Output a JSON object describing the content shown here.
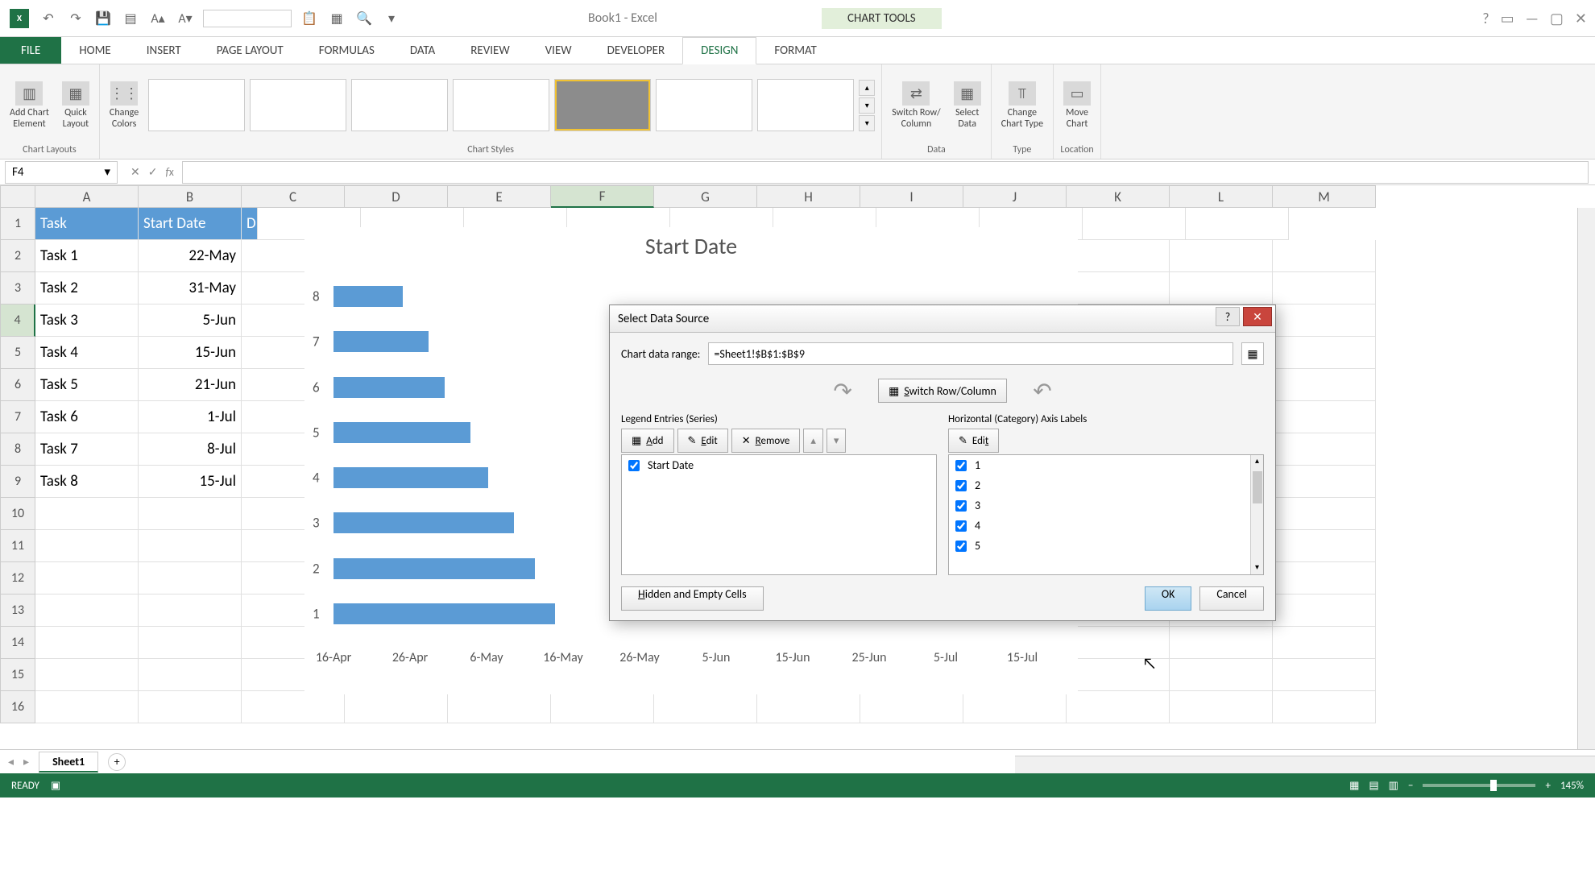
{
  "app": {
    "title": "Book1 - Excel",
    "chart_tools": "CHART TOOLS"
  },
  "tabs": {
    "file": "FILE",
    "home": "HOME",
    "insert": "INSERT",
    "page_layout": "PAGE LAYOUT",
    "formulas": "FORMULAS",
    "data": "DATA",
    "review": "REVIEW",
    "view": "VIEW",
    "developer": "DEVELOPER",
    "design": "DESIGN",
    "format": "FORMAT"
  },
  "ribbon": {
    "add_chart_element": "Add Chart\nElement",
    "quick_layout": "Quick\nLayout",
    "change_colors": "Change\nColors",
    "group_chart_layouts": "Chart Layouts",
    "group_chart_styles": "Chart Styles",
    "switch_row_col": "Switch Row/\nColumn",
    "select_data": "Select\nData",
    "group_data": "Data",
    "change_chart_type": "Change\nChart Type",
    "group_type": "Type",
    "move_chart": "Move\nChart",
    "group_location": "Location"
  },
  "name_box": "F4",
  "columns": [
    "A",
    "B",
    "C",
    "D",
    "E",
    "F",
    "G",
    "H",
    "I",
    "J",
    "K",
    "L",
    "M"
  ],
  "active_col_idx": 5,
  "active_row_idx": 3,
  "table": {
    "headers": [
      "Task",
      "Start Date",
      "D"
    ],
    "rows": [
      [
        "Task 1",
        "22-May"
      ],
      [
        "Task 2",
        "31-May"
      ],
      [
        "Task 3",
        "5-Jun"
      ],
      [
        "Task 4",
        "15-Jun"
      ],
      [
        "Task 5",
        "21-Jun"
      ],
      [
        "Task 6",
        "1-Jul"
      ],
      [
        "Task 7",
        "8-Jul"
      ],
      [
        "Task 8",
        "15-Jul"
      ]
    ]
  },
  "chart": {
    "title": "Start Date",
    "y_ticks": [
      "8",
      "7",
      "6",
      "5",
      "4",
      "3",
      "2",
      "1"
    ],
    "x_ticks": [
      "16-Apr",
      "26-Apr",
      "6-May",
      "16-May",
      "26-May",
      "5-Jun",
      "15-Jun",
      "25-Jun",
      "5-Jul",
      "15-Jul"
    ],
    "bar_color": "#5b9bd5",
    "bars": [
      {
        "y": 0,
        "len": 0.27
      },
      {
        "y": 1,
        "len": 0.37
      },
      {
        "y": 2,
        "len": 0.43
      },
      {
        "y": 3,
        "len": 0.53
      },
      {
        "y": 4,
        "len": 0.6
      },
      {
        "y": 5,
        "len": 0.7
      },
      {
        "y": 6,
        "len": 0.78
      },
      {
        "y": 7,
        "len": 0.86
      }
    ]
  },
  "dialog": {
    "title": "Select Data Source",
    "range_label": "Chart data range:",
    "range_value": "=Sheet1!$B$1:$B$9",
    "switch": "Switch Row/Column",
    "series_title": "Legend Entries (Series)",
    "axis_title": "Horizontal (Category) Axis Labels",
    "add": "Add",
    "edit": "Edit",
    "remove": "Remove",
    "series": [
      "Start Date"
    ],
    "axis_labels": [
      "1",
      "2",
      "3",
      "4",
      "5"
    ],
    "hidden_cells": "Hidden and Empty Cells",
    "ok": "OK",
    "cancel": "Cancel"
  },
  "sheet_tab": "Sheet1",
  "status": {
    "ready": "READY",
    "zoom": "145%"
  }
}
